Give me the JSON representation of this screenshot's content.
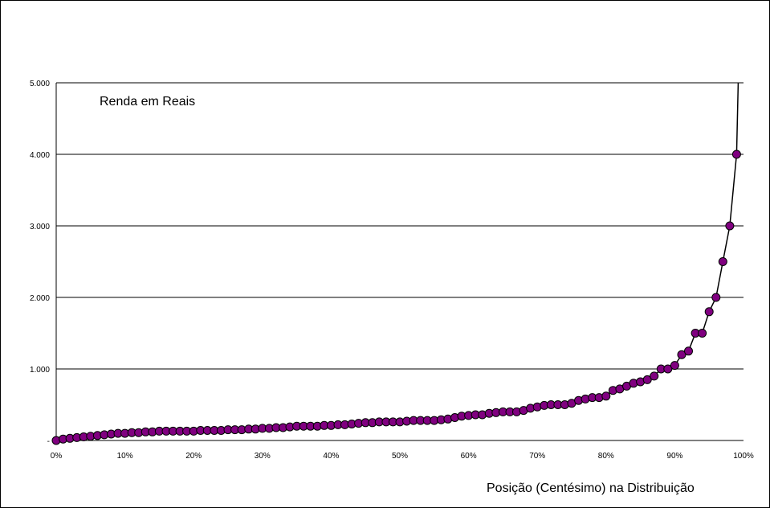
{
  "chart_data": {
    "type": "line",
    "series_label": "Renda em Reais",
    "xlabel": "Posição (Centésimo) na Distribuição",
    "ylabel": "",
    "xlim": [
      0,
      100
    ],
    "ylim": [
      0,
      5000
    ],
    "yticks": [
      {
        "value": 0,
        "label": "-"
      },
      {
        "value": 1000,
        "label": "1.000"
      },
      {
        "value": 2000,
        "label": "2.000"
      },
      {
        "value": 3000,
        "label": "3.000"
      },
      {
        "value": 4000,
        "label": "4.000"
      },
      {
        "value": 5000,
        "label": "5.000"
      }
    ],
    "xticks": [
      {
        "value": 0,
        "label": "0%"
      },
      {
        "value": 10,
        "label": "10%"
      },
      {
        "value": 20,
        "label": "20%"
      },
      {
        "value": 30,
        "label": "30%"
      },
      {
        "value": 40,
        "label": "40%"
      },
      {
        "value": 50,
        "label": "50%"
      },
      {
        "value": 60,
        "label": "60%"
      },
      {
        "value": 70,
        "label": "70%"
      },
      {
        "value": 80,
        "label": "80%"
      },
      {
        "value": 90,
        "label": "90%"
      },
      {
        "value": 100,
        "label": "100%"
      }
    ],
    "grid": "horizontal",
    "line_color": "#000000",
    "marker_color": "#800080",
    "marker_stroke": "#000000",
    "values": [
      0,
      20,
      30,
      40,
      50,
      60,
      70,
      80,
      90,
      100,
      100,
      110,
      110,
      120,
      120,
      130,
      130,
      130,
      130,
      130,
      130,
      140,
      140,
      140,
      140,
      150,
      150,
      150,
      160,
      160,
      170,
      170,
      180,
      180,
      190,
      200,
      200,
      200,
      200,
      210,
      210,
      220,
      220,
      230,
      240,
      250,
      250,
      260,
      260,
      260,
      260,
      270,
      280,
      280,
      280,
      280,
      290,
      300,
      320,
      340,
      350,
      360,
      360,
      380,
      390,
      400,
      400,
      400,
      420,
      450,
      470,
      490,
      500,
      500,
      500,
      520,
      560,
      580,
      600,
      600,
      620,
      700,
      720,
      760,
      800,
      820,
      850,
      900,
      1000,
      1000,
      1050,
      1200,
      1250,
      1500,
      1500,
      1800,
      2000,
      2500,
      3000,
      4000
    ],
    "line_tail_top": 5000
  }
}
